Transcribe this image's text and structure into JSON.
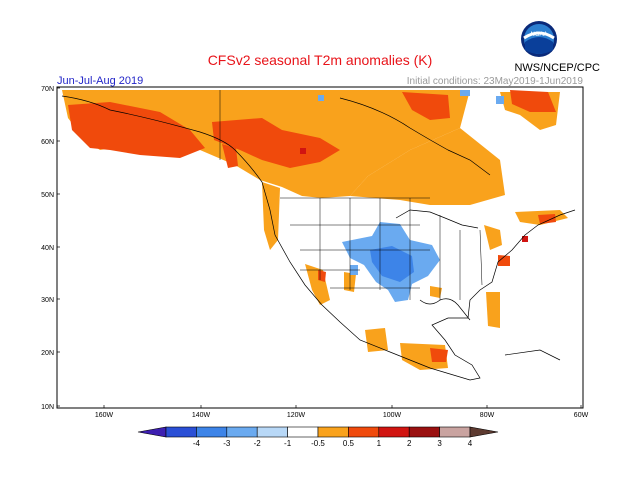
{
  "header": {
    "title": "CFSv2 seasonal T2m anomalies (K)",
    "season": "Jun-Jul-Aug 2019",
    "initial_conditions": "Initial conditions: 23May2019-1Jun2019",
    "source": "NWS/NCEP/CPC",
    "logo_text": "NOAA"
  },
  "map": {
    "lat_labels": [
      "70N",
      "60N",
      "50N",
      "40N",
      "30N",
      "20N",
      "10N"
    ],
    "lon_labels": [
      "160W",
      "140W",
      "120W",
      "100W",
      "80W",
      "60W"
    ]
  },
  "colorbar": {
    "labels": [
      "-4",
      "-3",
      "-2",
      "-1",
      "-0.5",
      "0.5",
      "1",
      "2",
      "3",
      "4"
    ],
    "colors": [
      "#3d1fb1",
      "#2a4fd6",
      "#3d84e8",
      "#6aaaf0",
      "#b8d8f7",
      "#ffffff",
      "#f9a21c",
      "#f04a0c",
      "#d11411",
      "#9a1010",
      "#c9a3a0",
      "#5d3a30"
    ]
  },
  "legend_colors": {
    "warm_05_1": "#f9a21c",
    "warm_1_2": "#f04a0c",
    "warm_2_3": "#d11411",
    "cool_05_1": "#6aaaf0",
    "cool_1_2": "#3d84e8"
  }
}
